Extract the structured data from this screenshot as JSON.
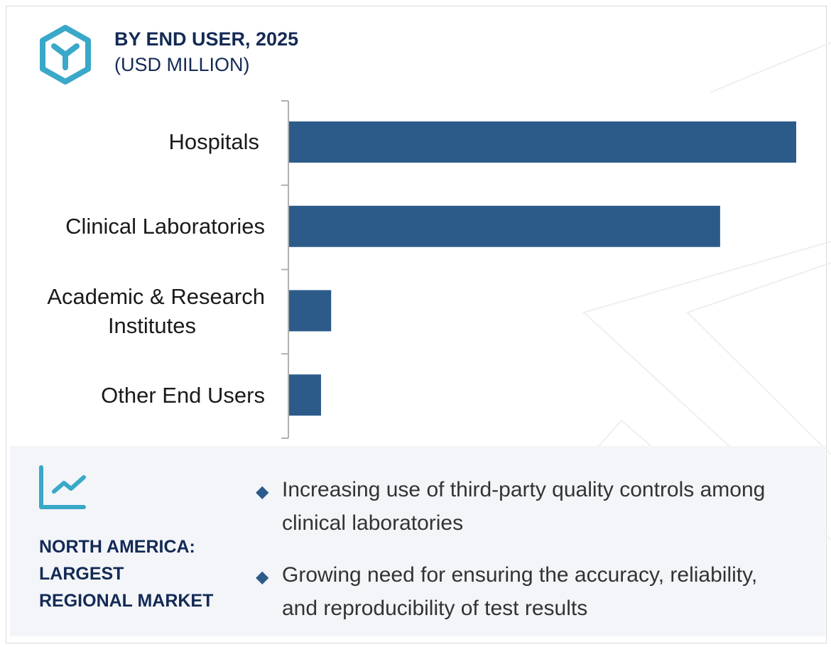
{
  "header": {
    "title": "BY END USER, 2025",
    "subtitle": "(USD MILLION)",
    "icon": "hexagon-y-icon"
  },
  "chart_data": {
    "type": "bar",
    "orientation": "horizontal",
    "title": "BY END USER, 2025",
    "subtitle": "(USD MILLION)",
    "categories": [
      "Hospitals",
      "Clinical Laboratories",
      "Academic & Research Institutes",
      "Other End Users"
    ],
    "values": [
      100,
      85,
      8.3,
      6.3
    ],
    "value_note": "relative index (values not printed)",
    "grid": false,
    "legend": "none",
    "bar_color": "#2c5b8a",
    "axis_color": "#b0b0b0"
  },
  "summary": {
    "icon": "line-chart-trend-icon",
    "region_lines": [
      "NORTH AMERICA:",
      "LARGEST",
      "REGIONAL MARKET"
    ],
    "bullets": [
      "Increasing use of third-party quality controls among clinical laboratories",
      "Growing need for ensuring the accuracy, reliability, and reproducibility of test results"
    ]
  },
  "colors": {
    "accent": "#3aa8c8",
    "navy": "#132a55",
    "bar": "#2c5b8a",
    "panel": "#f3f5f9"
  }
}
